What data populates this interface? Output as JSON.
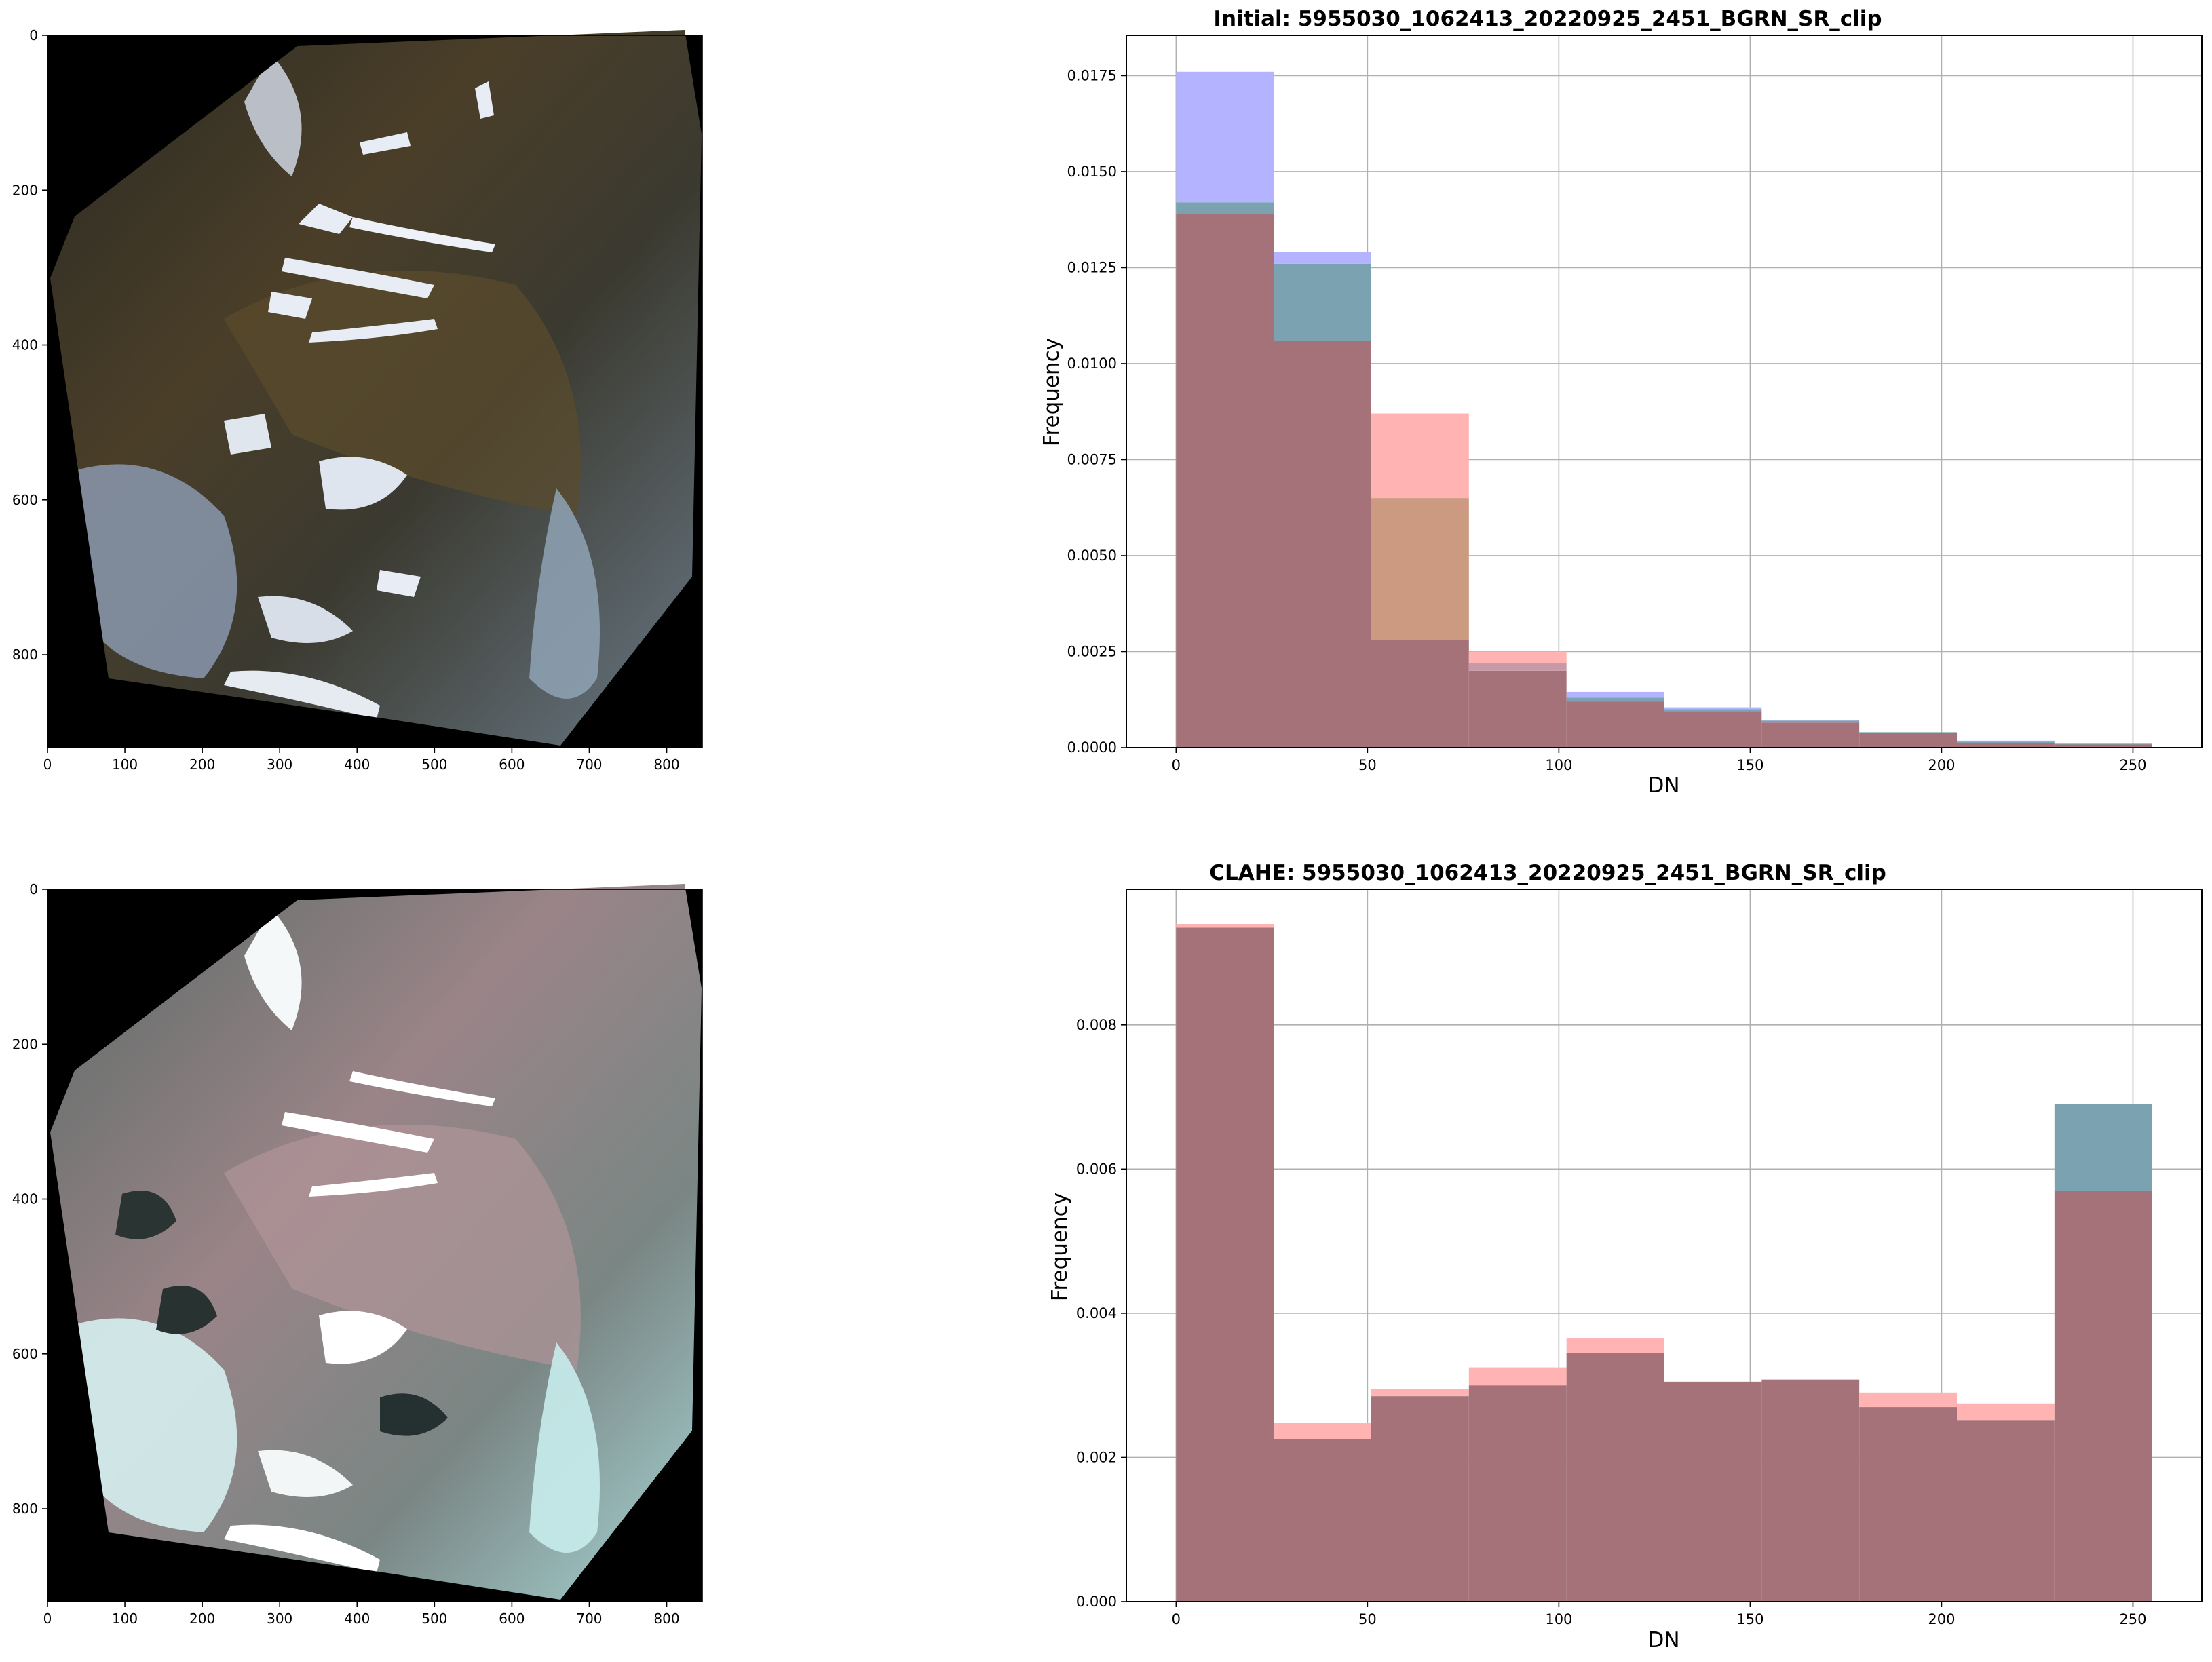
{
  "figure": {
    "image_panels": [
      {
        "name": "initial-image",
        "x_ticks": [
          "0",
          "100",
          "200",
          "300",
          "400",
          "500",
          "600",
          "700",
          "800"
        ],
        "y_ticks": [
          "0",
          "200",
          "400",
          "600",
          "800"
        ]
      },
      {
        "name": "clahe-image",
        "x_ticks": [
          "0",
          "100",
          "200",
          "300",
          "400",
          "500",
          "600",
          "700",
          "800"
        ],
        "y_ticks": [
          "0",
          "200",
          "400",
          "600",
          "800"
        ]
      }
    ],
    "colors": {
      "blue_band": "#8080ff",
      "green_band": "#2f6f6f",
      "red_band": "#ff8080",
      "overlap": "#a57279",
      "grid": "#b0b0b0"
    }
  },
  "chart_data": [
    {
      "type": "bar",
      "title": "Initial: 5955030_1062413_20220925_2451_BGRN_SR_clip",
      "xlabel": "DN",
      "ylabel": "Frequency",
      "xlim": [
        -13,
        268
      ],
      "ylim": [
        0,
        0.01855
      ],
      "x_ticks": [
        0,
        50,
        100,
        150,
        200,
        250
      ],
      "y_ticks": [
        0.0,
        0.0025,
        0.005,
        0.0075,
        0.01,
        0.0125,
        0.015,
        0.0175
      ],
      "y_tick_labels": [
        "0.0000",
        "0.0025",
        "0.0050",
        "0.0075",
        "0.0100",
        "0.0125",
        "0.0150",
        "0.0175"
      ],
      "bin_edges": [
        0,
        25.5,
        51,
        76.5,
        102,
        127.5,
        153,
        178.5,
        204,
        229.5,
        255
      ],
      "grid": true,
      "series": [
        {
          "color": "#8080ff",
          "values": [
            0.0176,
            0.0129,
            0.0028,
            0.0022,
            0.00145,
            0.00105,
            0.00072,
            0.0004,
            0.00018,
            0.0001
          ]
        },
        {
          "color": "#2f6f6f",
          "values": [
            0.0142,
            0.0126,
            0.0065,
            0.002,
            0.0013,
            0.001,
            0.0007,
            0.0004,
            0.00015,
            0.0001
          ]
        },
        {
          "color": "#ff8080",
          "values": [
            0.0139,
            0.0106,
            0.0087,
            0.0025,
            0.0012,
            0.00095,
            0.00065,
            0.00038,
            0.00012,
            8e-05
          ]
        }
      ]
    },
    {
      "type": "bar",
      "title": "CLAHE: 5955030_1062413_20220925_2451_BGRN_SR_clip",
      "xlabel": "DN",
      "ylabel": "Frequency",
      "xlim": [
        -13,
        268
      ],
      "ylim": [
        0,
        0.00988
      ],
      "x_ticks": [
        0,
        50,
        100,
        150,
        200,
        250
      ],
      "y_ticks": [
        0.0,
        0.002,
        0.004,
        0.006,
        0.008
      ],
      "y_tick_labels": [
        "0.000",
        "0.002",
        "0.004",
        "0.006",
        "0.008"
      ],
      "bin_edges": [
        0,
        25.5,
        51,
        76.5,
        102,
        127.5,
        153,
        178.5,
        204,
        229.5,
        255
      ],
      "grid": true,
      "series": [
        {
          "color": "#8080ff",
          "values": [
            0.00935,
            0.00225,
            0.00285,
            0.003,
            0.00345,
            0.00305,
            0.00308,
            0.0027,
            0.00252,
            0.0069
          ]
        },
        {
          "color": "#2f6f6f",
          "values": [
            0.00935,
            0.00225,
            0.00285,
            0.003,
            0.00345,
            0.00305,
            0.00308,
            0.0027,
            0.00252,
            0.0069
          ]
        },
        {
          "color": "#ff8080",
          "values": [
            0.0094,
            0.00248,
            0.00295,
            0.00325,
            0.00365,
            0.00305,
            0.00308,
            0.0029,
            0.00275,
            0.0057
          ]
        }
      ]
    }
  ]
}
